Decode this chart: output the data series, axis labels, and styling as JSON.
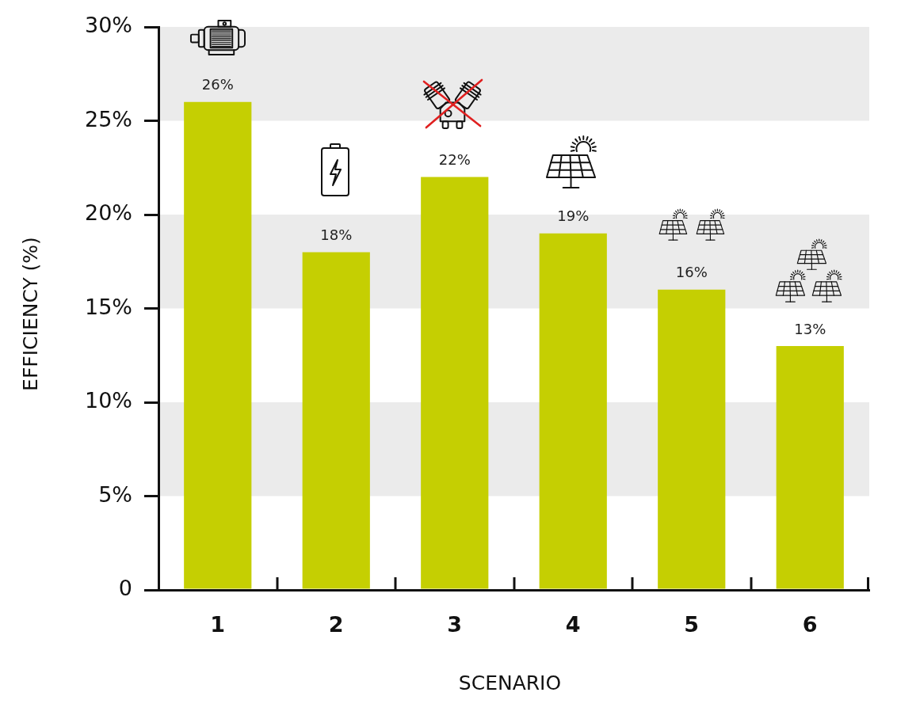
{
  "chart_data": {
    "type": "bar",
    "categories": [
      "1",
      "2",
      "3",
      "4",
      "5",
      "6"
    ],
    "values": [
      26,
      18,
      22,
      19,
      16,
      13
    ],
    "value_labels": [
      "26%",
      "18%",
      "22%",
      "19%",
      "16%",
      "13%"
    ],
    "color": "#c5cf02",
    "xlabel": "SCENARIO",
    "ylabel": "EFFICIENCY (%)",
    "ylim": [
      0,
      30
    ],
    "yticks": [
      0,
      {
        "value": 5,
        "label": "5%"
      },
      {
        "value": 10,
        "label": "10%"
      },
      {
        "value": 15,
        "label": "15%"
      },
      {
        "value": 20,
        "label": "20%"
      },
      {
        "value": 25,
        "label": "25%"
      },
      {
        "value": 30,
        "label": "30%"
      }
    ],
    "bands": [
      {
        "axis": "y",
        "from": 5,
        "to": 10,
        "color": "#ebebeb"
      },
      {
        "axis": "y",
        "from": 15,
        "to": 20,
        "color": "#ebebeb"
      },
      {
        "axis": "y",
        "from": 25,
        "to": 30,
        "color": "#ebebeb"
      }
    ]
  }
}
